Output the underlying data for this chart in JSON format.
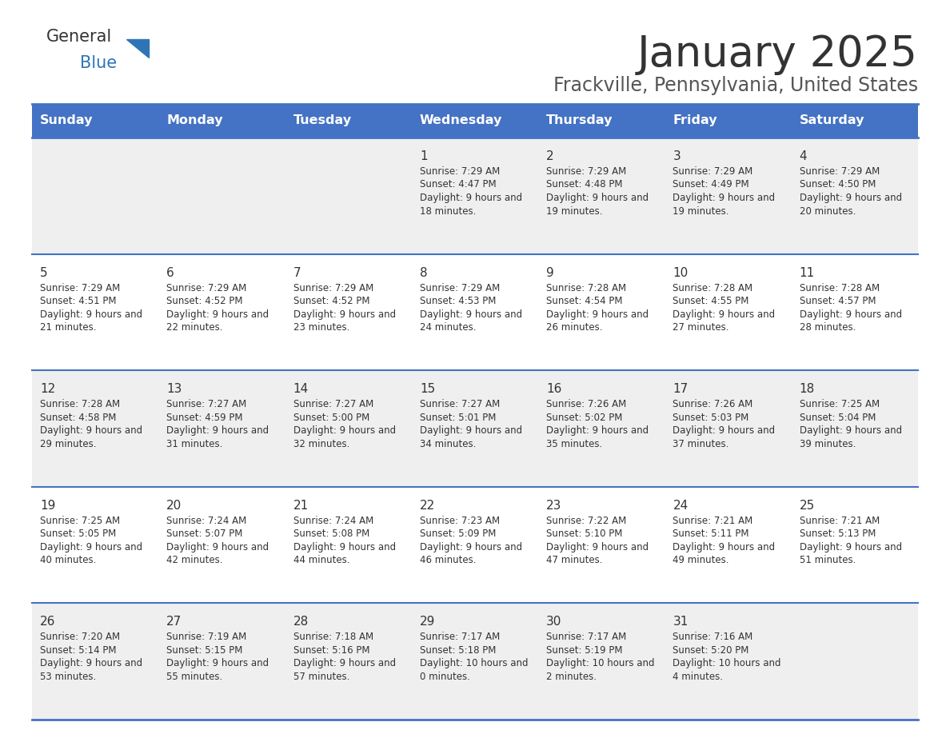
{
  "title": "January 2025",
  "subtitle": "Frackville, Pennsylvania, United States",
  "header_bg": "#4472C4",
  "header_text_color": "#FFFFFF",
  "row_bg_1": "#EFEFEF",
  "row_bg_2": "#FFFFFF",
  "separator_color": "#4472C4",
  "text_color": "#333333",
  "day_headers": [
    "Sunday",
    "Monday",
    "Tuesday",
    "Wednesday",
    "Thursday",
    "Friday",
    "Saturday"
  ],
  "weeks": [
    [
      {
        "day": "",
        "sunrise": "",
        "sunset": "",
        "daylight": ""
      },
      {
        "day": "",
        "sunrise": "",
        "sunset": "",
        "daylight": ""
      },
      {
        "day": "",
        "sunrise": "",
        "sunset": "",
        "daylight": ""
      },
      {
        "day": "1",
        "sunrise": "7:29 AM",
        "sunset": "4:47 PM",
        "daylight": "9 hours and 18 minutes."
      },
      {
        "day": "2",
        "sunrise": "7:29 AM",
        "sunset": "4:48 PM",
        "daylight": "9 hours and 19 minutes."
      },
      {
        "day": "3",
        "sunrise": "7:29 AM",
        "sunset": "4:49 PM",
        "daylight": "9 hours and 19 minutes."
      },
      {
        "day": "4",
        "sunrise": "7:29 AM",
        "sunset": "4:50 PM",
        "daylight": "9 hours and 20 minutes."
      }
    ],
    [
      {
        "day": "5",
        "sunrise": "7:29 AM",
        "sunset": "4:51 PM",
        "daylight": "9 hours and 21 minutes."
      },
      {
        "day": "6",
        "sunrise": "7:29 AM",
        "sunset": "4:52 PM",
        "daylight": "9 hours and 22 minutes."
      },
      {
        "day": "7",
        "sunrise": "7:29 AM",
        "sunset": "4:52 PM",
        "daylight": "9 hours and 23 minutes."
      },
      {
        "day": "8",
        "sunrise": "7:29 AM",
        "sunset": "4:53 PM",
        "daylight": "9 hours and 24 minutes."
      },
      {
        "day": "9",
        "sunrise": "7:28 AM",
        "sunset": "4:54 PM",
        "daylight": "9 hours and 26 minutes."
      },
      {
        "day": "10",
        "sunrise": "7:28 AM",
        "sunset": "4:55 PM",
        "daylight": "9 hours and 27 minutes."
      },
      {
        "day": "11",
        "sunrise": "7:28 AM",
        "sunset": "4:57 PM",
        "daylight": "9 hours and 28 minutes."
      }
    ],
    [
      {
        "day": "12",
        "sunrise": "7:28 AM",
        "sunset": "4:58 PM",
        "daylight": "9 hours and 29 minutes."
      },
      {
        "day": "13",
        "sunrise": "7:27 AM",
        "sunset": "4:59 PM",
        "daylight": "9 hours and 31 minutes."
      },
      {
        "day": "14",
        "sunrise": "7:27 AM",
        "sunset": "5:00 PM",
        "daylight": "9 hours and 32 minutes."
      },
      {
        "day": "15",
        "sunrise": "7:27 AM",
        "sunset": "5:01 PM",
        "daylight": "9 hours and 34 minutes."
      },
      {
        "day": "16",
        "sunrise": "7:26 AM",
        "sunset": "5:02 PM",
        "daylight": "9 hours and 35 minutes."
      },
      {
        "day": "17",
        "sunrise": "7:26 AM",
        "sunset": "5:03 PM",
        "daylight": "9 hours and 37 minutes."
      },
      {
        "day": "18",
        "sunrise": "7:25 AM",
        "sunset": "5:04 PM",
        "daylight": "9 hours and 39 minutes."
      }
    ],
    [
      {
        "day": "19",
        "sunrise": "7:25 AM",
        "sunset": "5:05 PM",
        "daylight": "9 hours and 40 minutes."
      },
      {
        "day": "20",
        "sunrise": "7:24 AM",
        "sunset": "5:07 PM",
        "daylight": "9 hours and 42 minutes."
      },
      {
        "day": "21",
        "sunrise": "7:24 AM",
        "sunset": "5:08 PM",
        "daylight": "9 hours and 44 minutes."
      },
      {
        "day": "22",
        "sunrise": "7:23 AM",
        "sunset": "5:09 PM",
        "daylight": "9 hours and 46 minutes."
      },
      {
        "day": "23",
        "sunrise": "7:22 AM",
        "sunset": "5:10 PM",
        "daylight": "9 hours and 47 minutes."
      },
      {
        "day": "24",
        "sunrise": "7:21 AM",
        "sunset": "5:11 PM",
        "daylight": "9 hours and 49 minutes."
      },
      {
        "day": "25",
        "sunrise": "7:21 AM",
        "sunset": "5:13 PM",
        "daylight": "9 hours and 51 minutes."
      }
    ],
    [
      {
        "day": "26",
        "sunrise": "7:20 AM",
        "sunset": "5:14 PM",
        "daylight": "9 hours and 53 minutes."
      },
      {
        "day": "27",
        "sunrise": "7:19 AM",
        "sunset": "5:15 PM",
        "daylight": "9 hours and 55 minutes."
      },
      {
        "day": "28",
        "sunrise": "7:18 AM",
        "sunset": "5:16 PM",
        "daylight": "9 hours and 57 minutes."
      },
      {
        "day": "29",
        "sunrise": "7:17 AM",
        "sunset": "5:18 PM",
        "daylight": "10 hours and 0 minutes."
      },
      {
        "day": "30",
        "sunrise": "7:17 AM",
        "sunset": "5:19 PM",
        "daylight": "10 hours and 2 minutes."
      },
      {
        "day": "31",
        "sunrise": "7:16 AM",
        "sunset": "5:20 PM",
        "daylight": "10 hours and 4 minutes."
      },
      {
        "day": "",
        "sunrise": "",
        "sunset": "",
        "daylight": ""
      }
    ]
  ],
  "logo_general_color": "#333333",
  "logo_blue_color": "#2E75B6",
  "logo_triangle_color": "#2E75B6",
  "title_color": "#333333",
  "subtitle_color": "#555555",
  "figsize": [
    11.88,
    9.18
  ],
  "dpi": 100
}
